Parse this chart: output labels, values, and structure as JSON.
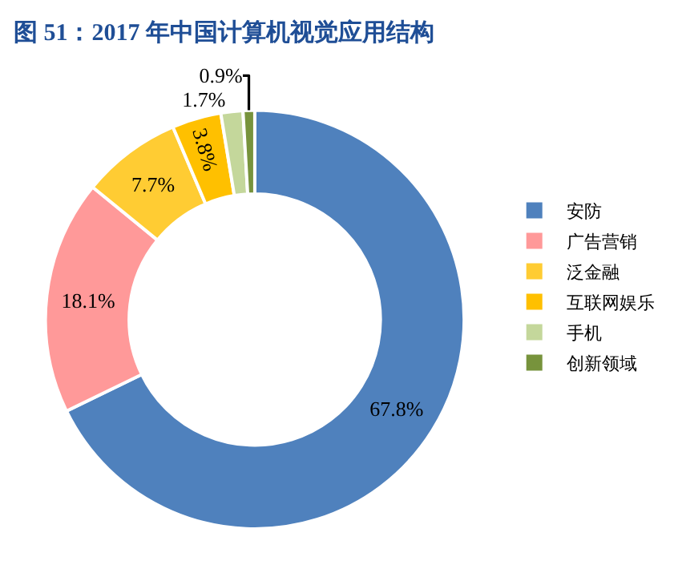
{
  "chart_data": {
    "type": "donut",
    "title": "图 51：2017 年中国计算机视觉应用结构",
    "categories": [
      "安防",
      "广告营销",
      "泛金融",
      "互联网娱乐",
      "手机",
      "创新领域"
    ],
    "values": [
      67.8,
      18.1,
      7.7,
      3.8,
      1.7,
      0.9
    ],
    "value_labels": [
      "67.8%",
      "18.1%",
      "7.7%",
      "3.8%",
      "1.7%",
      "0.9%"
    ],
    "colors": [
      "#4f81bd",
      "#ff9999",
      "#ffcc33",
      "#ffc000",
      "#c4d79b",
      "#77933c"
    ],
    "legend": "right"
  }
}
